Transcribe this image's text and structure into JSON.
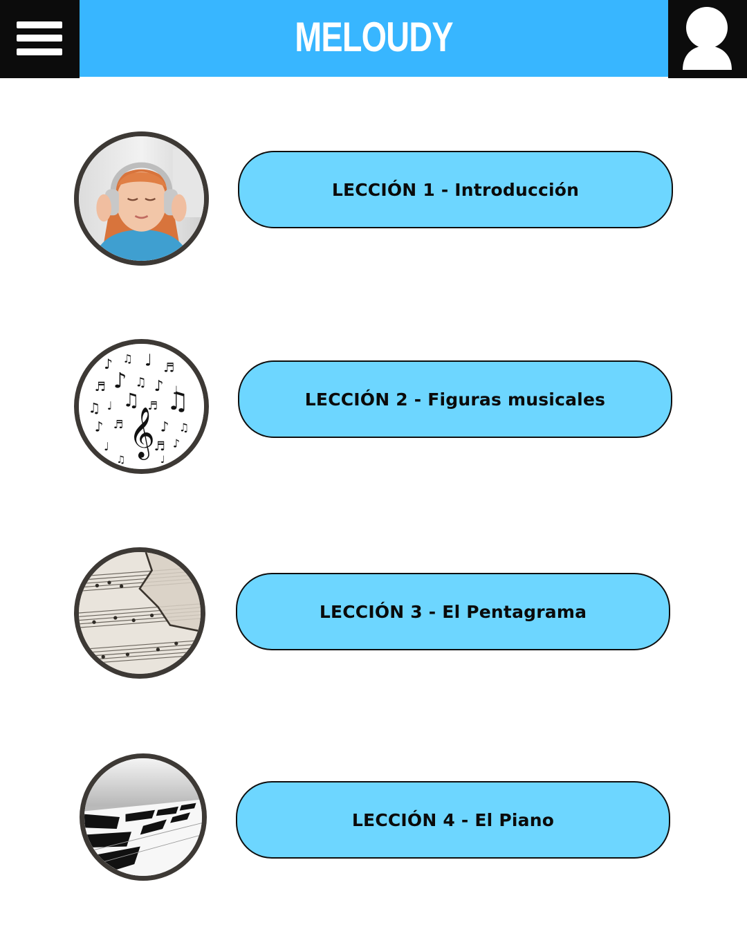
{
  "header": {
    "title": "MELOUDY",
    "menu_icon": "hamburger-menu-icon",
    "user_icon": "user-profile-icon",
    "colors": {
      "title_band": "#38b6ff",
      "side_boxes": "#0c0c0c"
    }
  },
  "lessons": [
    {
      "label": "LECCIÓN 1 - Introducción",
      "image": "girl-with-headphones"
    },
    {
      "label": "LECCIÓN 2 - Figuras musicales",
      "image": "music-notes"
    },
    {
      "label": "LECCIÓN 3 - El Pentagrama",
      "image": "sheet-music"
    },
    {
      "label": "LECCIÓN 4 - El Piano",
      "image": "piano-keys"
    }
  ],
  "colors": {
    "lesson_button": "#6dd6ff",
    "thumb_border": "#3d3935"
  }
}
